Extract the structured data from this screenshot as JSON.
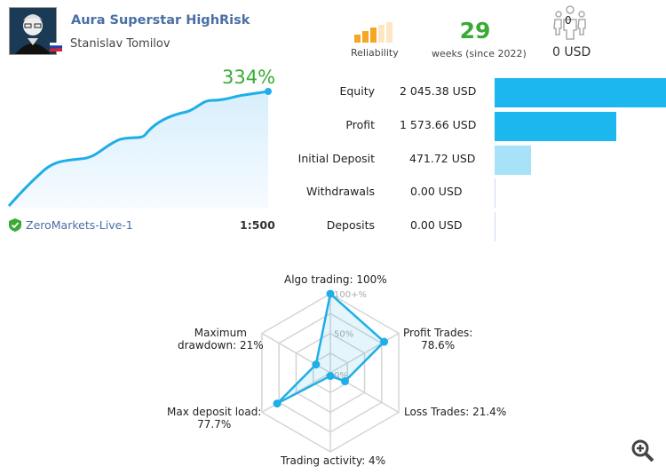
{
  "header": {
    "title": "Aura Superstar HighRisk",
    "author": "Stanislav Tomilov",
    "flag": "russia-flag-icon"
  },
  "stats": {
    "reliability_label": "Reliability",
    "reliability_level": 3,
    "reliability_max": 5,
    "weeks": "29",
    "weeks_label": "weeks (since 2022)",
    "subscribers": "0",
    "subscribers_funds": "0 USD"
  },
  "growth": {
    "value": "334%",
    "server": "ZeroMarkets-Live-1",
    "leverage": "1:500"
  },
  "rows": [
    {
      "label": "Equity",
      "value": "2 045.38 USD",
      "amount": 2045.38
    },
    {
      "label": "Profit",
      "value": "1 573.66 USD",
      "amount": 1573.66
    },
    {
      "label": "Initial Deposit",
      "value": "471.72 USD",
      "amount": 471.72
    },
    {
      "label": "Withdrawals",
      "value": "0.00 USD",
      "amount": 0
    },
    {
      "label": "Deposits",
      "value": "0.00 USD",
      "amount": 0
    }
  ],
  "colors": {
    "accent": "#1eaee8",
    "green": "#3aaa35",
    "bar": "#1cb7ef",
    "bar_light": "#a8e2f8",
    "reliability": "#f5a623"
  },
  "radar": {
    "ticks": [
      "100+%",
      "50%",
      "0%"
    ],
    "axes": [
      {
        "label": "Algo trading: 100%",
        "value": 100
      },
      {
        "label": "Profit Trades:",
        "label2": "78.6%",
        "value": 78.6
      },
      {
        "label": "Loss Trades: 21.4%",
        "value": 21.4
      },
      {
        "label": "Trading activity: 4%",
        "value": 4
      },
      {
        "label": "Max deposit load:",
        "label2": "77.7%",
        "value": 77.7
      },
      {
        "label": "Maximum",
        "label2": "drawdown: 21%",
        "value": 21
      }
    ]
  }
}
